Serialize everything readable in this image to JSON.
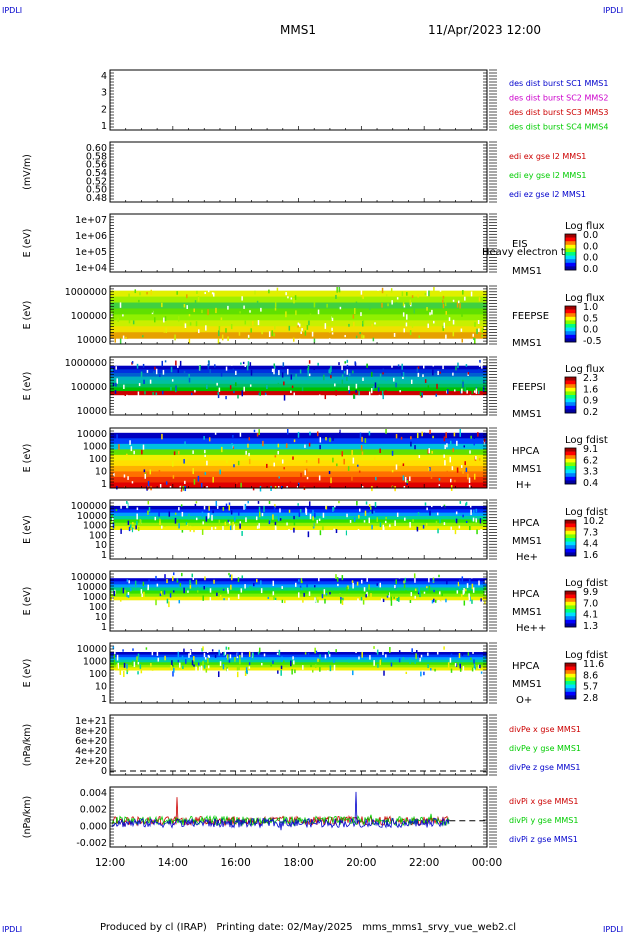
{
  "corner_label": "IPDLI",
  "header": {
    "mission": "MMS1",
    "datetime": "11/Apr/2023 12:00"
  },
  "footer": {
    "text": "Produced by cl (IRAP)   Printing date: 02/May/2025   mms_mms1_srvy_vue_web2.cl"
  },
  "time_axis": {
    "tick_labels": [
      "12:00",
      "14:00",
      "16:00",
      "18:00",
      "20:00",
      "22:00",
      "00:00"
    ],
    "start_hour": 12,
    "end_hour": 24
  },
  "chart_data": [
    {
      "type": "line",
      "panel": "des-dist-burst",
      "ylabel": "",
      "yticks": [
        "4",
        "3",
        "2",
        "1"
      ],
      "ylim": [
        1,
        4
      ],
      "legend_placement": "right",
      "series": [
        {
          "name": "des dist burst SC1 MMS1",
          "color": "#0000cc"
        },
        {
          "name": "des dist burst SC2 MMS2",
          "color": "#cc00cc"
        },
        {
          "name": "des dist burst SC3 MMS3",
          "color": "#cc0000"
        },
        {
          "name": "des dist burst SC4 MMS4",
          "color": "#00cc00"
        }
      ]
    },
    {
      "type": "line",
      "panel": "edi-electric-field",
      "ylabel": "(mV/m)",
      "yticks": [
        "0.60",
        "0.58",
        "0.56",
        "0.54",
        "0.52",
        "0.50",
        "0.48"
      ],
      "ylim": [
        0.48,
        0.6
      ],
      "legend_placement": "right",
      "series": [
        {
          "name": "edi ex gse l2 MMS1",
          "color": "#cc0000"
        },
        {
          "name": "edi ey gse l2 MMS1",
          "color": "#00cc00"
        },
        {
          "name": "edi ez gse l2 MMS1",
          "color": "#0000cc"
        }
      ]
    },
    {
      "type": "heatmap",
      "panel": "eis",
      "ylabel": "E (eV)",
      "yticks": [
        "1e+07",
        "1e+06",
        "1e+05",
        "1e+04"
      ],
      "ylim": [
        10000,
        10000000
      ],
      "scale": "log",
      "labels": [
        "EIS",
        "MMS1"
      ],
      "overlay_text": "Heavy electron to",
      "colorbar": {
        "title": "Log flux",
        "ticks": [
          "0.0",
          "0.0",
          "0.0",
          "0.0"
        ]
      },
      "fill_band": null
    },
    {
      "type": "heatmap",
      "panel": "feeps-electrons",
      "ylabel": "E (eV)",
      "yticks": [
        "1000000",
        "100000",
        "10000"
      ],
      "ylim": [
        10000,
        1000000
      ],
      "scale": "log",
      "labels": [
        "FEEPSE",
        "MMS1"
      ],
      "colorbar": {
        "title": "Log flux",
        "ticks": [
          "1.0",
          "0.5",
          "0.0",
          "-0.5"
        ]
      },
      "fill_band": {
        "low": 0.1,
        "high": 0.92,
        "profile": [
          "#e6a000",
          "#f0e000",
          "#c8f000",
          "#90f000",
          "#60e000",
          "#40d040",
          "#a0f000",
          "#e0f000"
        ]
      }
    },
    {
      "type": "heatmap",
      "panel": "feeps-ions",
      "ylabel": "E (eV)",
      "yticks": [
        "1000000",
        "100000",
        "10000"
      ],
      "ylim": [
        10000,
        1000000
      ],
      "scale": "log",
      "labels": [
        "FEEPSI",
        "MMS1"
      ],
      "colorbar": {
        "title": "Log flux",
        "ticks": [
          "2.3",
          "1.6",
          "0.9",
          "0.2"
        ]
      },
      "fill_band": {
        "low": 0.35,
        "high": 0.85,
        "profile": [
          "#cc0000",
          "#00c000",
          "#00c060",
          "#00c0a0",
          "#00b0c0",
          "#0060d0",
          "#0030e0",
          "#0000c0"
        ]
      }
    },
    {
      "type": "heatmap",
      "panel": "hpca-h",
      "ylabel": "E (eV)",
      "yticks": [
        "10000",
        "1000",
        "100",
        "10",
        "1"
      ],
      "ylim": [
        1,
        30000
      ],
      "scale": "log",
      "labels": [
        "HPCA",
        "MMS1",
        "H+"
      ],
      "colorbar": {
        "title": "Log fdist",
        "ticks": [
          "9.1",
          "6.2",
          "3.3",
          "0.4"
        ]
      },
      "fill_band": {
        "low": 0.0,
        "high": 0.92,
        "profile": [
          "#e00000",
          "#f03000",
          "#ff7000",
          "#ffb000",
          "#ffe000",
          "#f0f000",
          "#60e000",
          "#00c0e0",
          "#0040ff",
          "#0000c0"
        ]
      }
    },
    {
      "type": "heatmap",
      "panel": "hpca-he",
      "ylabel": "E (eV)",
      "yticks": [
        "100000",
        "10000",
        "1000",
        "100",
        "10",
        "1"
      ],
      "ylim": [
        1,
        100000
      ],
      "scale": "log",
      "labels": [
        "HPCA",
        "MMS1",
        "He+"
      ],
      "colorbar": {
        "title": "Log fdist",
        "ticks": [
          "10.2",
          "7.3",
          "4.4",
          "1.6"
        ]
      },
      "fill_band": {
        "low": 0.5,
        "high": 0.9,
        "profile": [
          "#f0f000",
          "#90f000",
          "#30e000",
          "#00d0a0",
          "#00a0ff",
          "#0030ff",
          "#0000c0"
        ]
      }
    },
    {
      "type": "heatmap",
      "panel": "hpca-he2",
      "ylabel": "E (eV)",
      "yticks": [
        "100000",
        "10000",
        "1000",
        "100",
        "10",
        "1"
      ],
      "ylim": [
        1,
        100000
      ],
      "scale": "log",
      "labels": [
        "HPCA",
        "MMS1",
        "He++"
      ],
      "colorbar": {
        "title": "Log fdist",
        "ticks": [
          "9.9",
          "7.0",
          "4.1",
          "1.3"
        ]
      },
      "fill_band": {
        "low": 0.52,
        "high": 0.88,
        "profile": [
          "#f0f000",
          "#80f000",
          "#30e000",
          "#00d080",
          "#00a0ff",
          "#0040ff",
          "#0000d0"
        ]
      }
    },
    {
      "type": "heatmap",
      "panel": "hpca-o",
      "ylabel": "E (eV)",
      "yticks": [
        "10000",
        "1000",
        "100",
        "10",
        "1"
      ],
      "ylim": [
        1,
        30000
      ],
      "scale": "log",
      "labels": [
        "HPCA",
        "MMS1",
        "O+"
      ],
      "colorbar": {
        "title": "Log fdist",
        "ticks": [
          "11.6",
          "8.6",
          "5.7",
          "2.8"
        ]
      },
      "fill_band": {
        "low": 0.55,
        "high": 0.85,
        "profile": [
          "#f0f000",
          "#90f000",
          "#40e000",
          "#00d0a0",
          "#00a0ff",
          "#0040ff",
          "#0000c0"
        ]
      }
    },
    {
      "type": "line",
      "panel": "div-pe",
      "ylabel": "(nPa/km)",
      "yticks": [
        "1e+21",
        "8e+20",
        "6e+20",
        "4e+20",
        "2e+20",
        "0"
      ],
      "ylim": [
        0,
        1e+21
      ],
      "legend_placement": "right",
      "series": [
        {
          "name": "divPe x gse MMS1",
          "color": "#cc0000"
        },
        {
          "name": "divPe y gse MMS1",
          "color": "#00cc00"
        },
        {
          "name": "divPe z gse MMS1",
          "color": "#0000cc"
        }
      ]
    },
    {
      "type": "line",
      "panel": "div-pi",
      "ylabel": "(nPa/km)",
      "yticks": [
        "0.004",
        "0.002",
        "0.000",
        "-0.002"
      ],
      "ylim": [
        -0.0035,
        0.0045
      ],
      "legend_placement": "right",
      "series": [
        {
          "name": "divPi x gse MMS1",
          "color": "#cc0000"
        },
        {
          "name": "divPi y gse MMS1",
          "color": "#00cc00"
        },
        {
          "name": "divPi z gse MMS1",
          "color": "#0000cc"
        }
      ]
    }
  ],
  "colormap": [
    "#0000a0",
    "#0000ff",
    "#0080ff",
    "#00e0ff",
    "#00ff80",
    "#80ff00",
    "#ffff00",
    "#ff8000",
    "#ff0000",
    "#a00000"
  ]
}
